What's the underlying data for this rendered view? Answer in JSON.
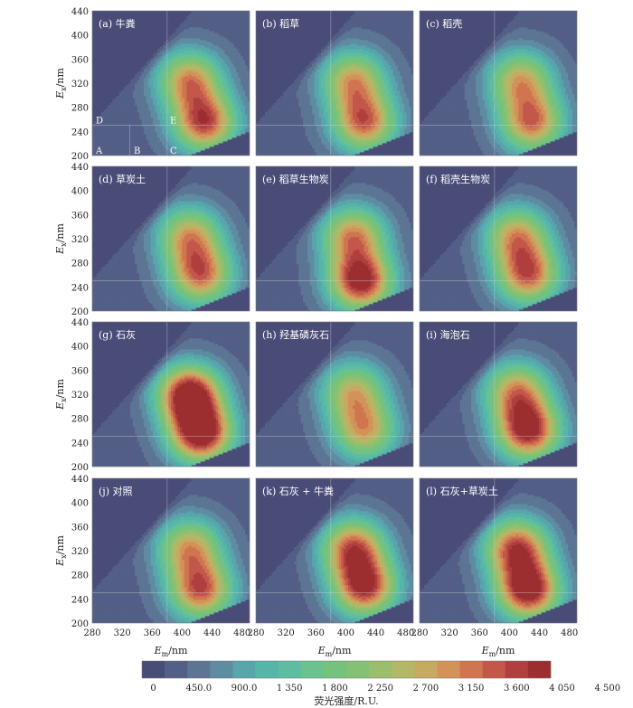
{
  "figure": {
    "y_axis_label_main": "E",
    "y_axis_label_sub": "x",
    "y_axis_label_unit": "/nm",
    "x_axis_label_main": "E",
    "x_axis_label_sub": "m",
    "x_axis_label_unit": "/nm",
    "colorbar_title": "荧光强度/R.U.",
    "region_labels": [
      "A",
      "B",
      "C",
      "D",
      "E"
    ]
  },
  "colors": {
    "background": "#4a4c78",
    "grid_line": "#cfd3dc",
    "colorbar_ramp": [
      "#4a4c78",
      "#535f86",
      "#5c7595",
      "#5e8ca2",
      "#58a5ac",
      "#55b5a9",
      "#5ebda0",
      "#6ac28e",
      "#74c27c",
      "#84c172",
      "#9bbe6c",
      "#b2b868",
      "#c7aa62",
      "#d39258",
      "#cf7550",
      "#c2574a",
      "#b03f3d",
      "#9c2e30"
    ]
  },
  "chart_data": [
    {
      "type": "heatmap",
      "panel_label": "(a) 牛粪",
      "x_label": "Em/nm",
      "y_label": "Ex/nm",
      "xlim": [
        280,
        490
      ],
      "ylim": [
        200,
        440
      ],
      "x_ticks": [
        "280",
        "320",
        "360",
        "400",
        "440",
        "480"
      ],
      "y_ticks": [
        "200",
        "240",
        "280",
        "320",
        "360",
        "400",
        "440"
      ],
      "peaks": [
        {
          "em": 430,
          "ex": 255,
          "intensity": 3600
        },
        {
          "em": 410,
          "ex": 325,
          "intensity": 3000
        }
      ]
    },
    {
      "type": "heatmap",
      "panel_label": "(b) 稻草",
      "x_label": "Em/nm",
      "y_label": "Ex/nm",
      "xlim": [
        280,
        490
      ],
      "ylim": [
        200,
        440
      ],
      "x_ticks": [
        "280",
        "320",
        "360",
        "400",
        "440",
        "480"
      ],
      "y_ticks": [
        "200",
        "240",
        "280",
        "320",
        "360",
        "400",
        "440"
      ],
      "peaks": [
        {
          "em": 425,
          "ex": 255,
          "intensity": 3300
        },
        {
          "em": 410,
          "ex": 325,
          "intensity": 2800
        }
      ]
    },
    {
      "type": "heatmap",
      "panel_label": "(c) 稻壳",
      "x_label": "Em/nm",
      "y_label": "Ex/nm",
      "xlim": [
        280,
        490
      ],
      "ylim": [
        200,
        440
      ],
      "x_ticks": [
        "280",
        "320",
        "360",
        "400",
        "440",
        "480"
      ],
      "y_ticks": [
        "200",
        "240",
        "280",
        "320",
        "360",
        "400",
        "440"
      ],
      "peaks": [
        {
          "em": 430,
          "ex": 255,
          "intensity": 3200
        },
        {
          "em": 415,
          "ex": 325,
          "intensity": 2700
        }
      ]
    },
    {
      "type": "heatmap",
      "panel_label": "(d) 草炭土",
      "x_label": "Em/nm",
      "y_label": "Ex/nm",
      "xlim": [
        280,
        490
      ],
      "ylim": [
        200,
        440
      ],
      "x_ticks": [
        "280",
        "320",
        "360",
        "400",
        "440",
        "480"
      ],
      "y_ticks": [
        "200",
        "240",
        "280",
        "320",
        "360",
        "400",
        "440"
      ],
      "peaks": [
        {
          "em": 425,
          "ex": 260,
          "intensity": 3200
        },
        {
          "em": 410,
          "ex": 325,
          "intensity": 2750
        }
      ]
    },
    {
      "type": "heatmap",
      "panel_label": "(e) 稻草生物炭",
      "x_label": "Em/nm",
      "y_label": "Ex/nm",
      "xlim": [
        280,
        490
      ],
      "ylim": [
        200,
        440
      ],
      "x_ticks": [
        "280",
        "320",
        "360",
        "400",
        "440",
        "480"
      ],
      "y_ticks": [
        "200",
        "240",
        "280",
        "320",
        "360",
        "400",
        "440"
      ],
      "peaks": [
        {
          "em": 420,
          "ex": 250,
          "intensity": 4100
        },
        {
          "em": 410,
          "ex": 325,
          "intensity": 3000
        }
      ]
    },
    {
      "type": "heatmap",
      "panel_label": "(f) 稻壳生物炭",
      "x_label": "Em/nm",
      "y_label": "Ex/nm",
      "xlim": [
        280,
        490
      ],
      "ylim": [
        200,
        440
      ],
      "x_ticks": [
        "280",
        "320",
        "360",
        "400",
        "440",
        "480"
      ],
      "y_ticks": [
        "200",
        "240",
        "280",
        "320",
        "360",
        "400",
        "440"
      ],
      "peaks": [
        {
          "em": 425,
          "ex": 260,
          "intensity": 3300
        },
        {
          "em": 410,
          "ex": 325,
          "intensity": 2800
        }
      ]
    },
    {
      "type": "heatmap",
      "panel_label": "(g) 石灰",
      "x_label": "Em/nm",
      "y_label": "Ex/nm",
      "xlim": [
        280,
        490
      ],
      "ylim": [
        200,
        440
      ],
      "x_ticks": [
        "280",
        "320",
        "360",
        "400",
        "440",
        "480"
      ],
      "y_ticks": [
        "200",
        "240",
        "280",
        "320",
        "360",
        "400",
        "440"
      ],
      "peaks": [
        {
          "em": 410,
          "ex": 320,
          "intensity": 4400
        },
        {
          "em": 425,
          "ex": 255,
          "intensity": 4300
        }
      ]
    },
    {
      "type": "heatmap",
      "panel_label": "(h) 羟基磷灰石",
      "x_label": "Em/nm",
      "y_label": "Ex/nm",
      "xlim": [
        280,
        490
      ],
      "ylim": [
        200,
        440
      ],
      "x_ticks": [
        "280",
        "320",
        "360",
        "400",
        "440",
        "480"
      ],
      "y_ticks": [
        "200",
        "240",
        "280",
        "320",
        "360",
        "400",
        "440"
      ],
      "peaks": [
        {
          "em": 425,
          "ex": 260,
          "intensity": 2700
        },
        {
          "em": 410,
          "ex": 325,
          "intensity": 2500
        }
      ]
    },
    {
      "type": "heatmap",
      "panel_label": "(i) 海泡石",
      "x_label": "Em/nm",
      "y_label": "Ex/nm",
      "xlim": [
        280,
        490
      ],
      "ylim": [
        200,
        440
      ],
      "x_ticks": [
        "280",
        "320",
        "360",
        "400",
        "440",
        "480"
      ],
      "y_ticks": [
        "200",
        "240",
        "280",
        "320",
        "360",
        "400",
        "440"
      ],
      "peaks": [
        {
          "em": 425,
          "ex": 260,
          "intensity": 4000
        },
        {
          "em": 410,
          "ex": 325,
          "intensity": 2900
        }
      ]
    },
    {
      "type": "heatmap",
      "panel_label": "(j) 对照",
      "x_label": "Em/nm",
      "y_label": "Ex/nm",
      "xlim": [
        280,
        490
      ],
      "ylim": [
        200,
        440
      ],
      "x_ticks": [
        "280",
        "320",
        "360",
        "400",
        "440",
        "480"
      ],
      "y_ticks": [
        "200",
        "240",
        "280",
        "320",
        "360",
        "400",
        "440"
      ],
      "peaks": [
        {
          "em": 425,
          "ex": 255,
          "intensity": 3400
        },
        {
          "em": 410,
          "ex": 325,
          "intensity": 2800
        }
      ]
    },
    {
      "type": "heatmap",
      "panel_label": "(k) 石灰 + 牛粪",
      "x_label": "Em/nm",
      "y_label": "Ex/nm",
      "xlim": [
        280,
        490
      ],
      "ylim": [
        200,
        440
      ],
      "x_ticks": [
        "280",
        "320",
        "360",
        "400",
        "440",
        "480"
      ],
      "y_ticks": [
        "200",
        "240",
        "280",
        "320",
        "360",
        "400",
        "440"
      ],
      "peaks": [
        {
          "em": 425,
          "ex": 260,
          "intensity": 3800
        },
        {
          "em": 410,
          "ex": 325,
          "intensity": 3400
        }
      ]
    },
    {
      "type": "heatmap",
      "panel_label": "(l) 石灰+草炭土",
      "x_label": "Em/nm",
      "y_label": "Ex/nm",
      "xlim": [
        280,
        490
      ],
      "ylim": [
        200,
        440
      ],
      "x_ticks": [
        "280",
        "320",
        "360",
        "400",
        "440",
        "480"
      ],
      "y_ticks": [
        "200",
        "240",
        "280",
        "320",
        "360",
        "400",
        "440"
      ],
      "peaks": [
        {
          "em": 425,
          "ex": 255,
          "intensity": 4200
        },
        {
          "em": 410,
          "ex": 325,
          "intensity": 3600
        }
      ]
    }
  ],
  "colorbar": {
    "min": 0,
    "max": 4500,
    "levels": 18,
    "tick_labels": [
      "0",
      "450.0",
      "900.0",
      "1 350",
      "1 800",
      "2 250",
      "2 700",
      "3 150",
      "3 600",
      "4 050",
      "4 500"
    ]
  }
}
